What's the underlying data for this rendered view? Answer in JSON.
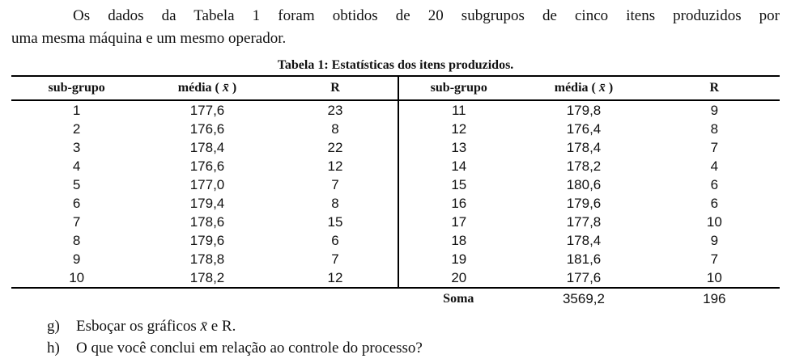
{
  "intro": {
    "line1": "Os dados da Tabela 1 foram obtidos de 20 subgrupos de cinco itens produzidos por",
    "line2": "uma mesma máquina e um mesmo operador."
  },
  "table": {
    "title": "Tabela 1: Estatísticas dos itens produzidos.",
    "headers": {
      "subgroup": "sub-grupo",
      "mean_pre": "média ( ",
      "mean_symbol": "x̄",
      "mean_post": " )",
      "range": "R"
    },
    "rows": [
      {
        "ls": "1",
        "lm": "177,6",
        "lr": "23",
        "rs": "11",
        "rm": "179,8",
        "rr": "9"
      },
      {
        "ls": "2",
        "lm": "176,6",
        "lr": "8",
        "rs": "12",
        "rm": "176,4",
        "rr": "8"
      },
      {
        "ls": "3",
        "lm": "178,4",
        "lr": "22",
        "rs": "13",
        "rm": "178,4",
        "rr": "7"
      },
      {
        "ls": "4",
        "lm": "176,6",
        "lr": "12",
        "rs": "14",
        "rm": "178,2",
        "rr": "4"
      },
      {
        "ls": "5",
        "lm": "177,0",
        "lr": "7",
        "rs": "15",
        "rm": "180,6",
        "rr": "6"
      },
      {
        "ls": "6",
        "lm": "179,4",
        "lr": "8",
        "rs": "16",
        "rm": "179,6",
        "rr": "6"
      },
      {
        "ls": "7",
        "lm": "178,6",
        "lr": "15",
        "rs": "17",
        "rm": "177,8",
        "rr": "10"
      },
      {
        "ls": "8",
        "lm": "179,6",
        "lr": "6",
        "rs": "18",
        "rm": "178,4",
        "rr": "9"
      },
      {
        "ls": "9",
        "lm": "178,8",
        "lr": "7",
        "rs": "19",
        "rm": "181,6",
        "rr": "7"
      },
      {
        "ls": "10",
        "lm": "178,2",
        "lr": "12",
        "rs": "20",
        "rm": "177,6",
        "rr": "10"
      }
    ],
    "soma": {
      "label": "Soma",
      "mean_total": "3569,2",
      "range_total": "196"
    }
  },
  "questions": {
    "g": {
      "label": "g)",
      "pre": "Esboçar os gráficos ",
      "symbol": "x̄",
      "post": " e R."
    },
    "h": {
      "label": "h)",
      "text": "O que você conclui em relação ao controle do processo?"
    }
  }
}
